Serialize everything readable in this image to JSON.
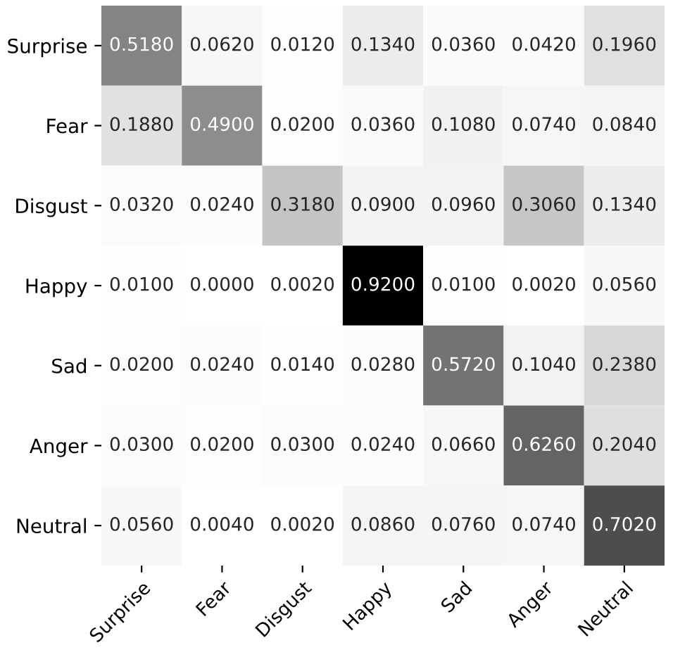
{
  "chart_data": {
    "type": "heatmap",
    "categories": [
      "Surprise",
      "Fear",
      "Disgust",
      "Happy",
      "Sad",
      "Anger",
      "Neutral"
    ],
    "y_categories": [
      "Surprise",
      "Fear",
      "Disgust",
      "Happy",
      "Sad",
      "Anger",
      "Neutral"
    ],
    "cells": [
      [
        0.518,
        0.062,
        0.012,
        0.134,
        0.036,
        0.042,
        0.196
      ],
      [
        0.188,
        0.49,
        0.02,
        0.036,
        0.108,
        0.074,
        0.084
      ],
      [
        0.032,
        0.024,
        0.318,
        0.09,
        0.096,
        0.306,
        0.134
      ],
      [
        0.01,
        0.0,
        0.002,
        0.92,
        0.01,
        0.002,
        0.056
      ],
      [
        0.02,
        0.024,
        0.014,
        0.028,
        0.572,
        0.104,
        0.238
      ],
      [
        0.03,
        0.02,
        0.03,
        0.024,
        0.066,
        0.626,
        0.204
      ],
      [
        0.056,
        0.004,
        0.002,
        0.086,
        0.076,
        0.074,
        0.702
      ]
    ],
    "cell_labels": [
      [
        "0.5180",
        "0.0620",
        "0.0120",
        "0.1340",
        "0.0360",
        "0.0420",
        "0.1960"
      ],
      [
        "0.1880",
        "0.4900",
        "0.0200",
        "0.0360",
        "0.1080",
        "0.0740",
        "0.0840"
      ],
      [
        "0.0320",
        "0.0240",
        "0.3180",
        "0.0900",
        "0.0960",
        "0.3060",
        "0.1340"
      ],
      [
        "0.0100",
        "0.0000",
        "0.0020",
        "0.9200",
        "0.0100",
        "0.0020",
        "0.0560"
      ],
      [
        "0.0200",
        "0.0240",
        "0.0140",
        "0.0280",
        "0.5720",
        "0.1040",
        "0.2380"
      ],
      [
        "0.0300",
        "0.0200",
        "0.0300",
        "0.0240",
        "0.0660",
        "0.6260",
        "0.2040"
      ],
      [
        "0.0560",
        "0.0040",
        "0.0020",
        "0.0860",
        "0.0760",
        "0.0740",
        "0.7020"
      ]
    ]
  }
}
